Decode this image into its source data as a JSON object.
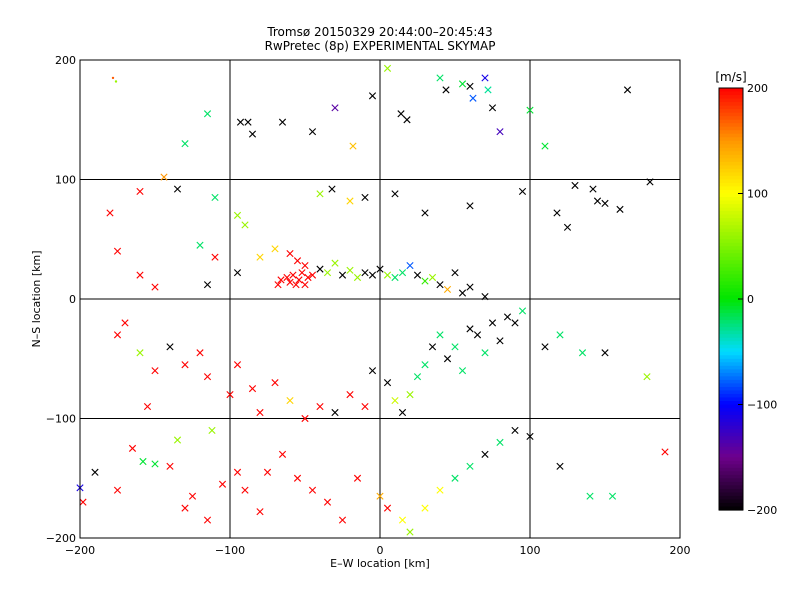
{
  "chart_data": {
    "type": "scatter",
    "title": "Tromsø 20150329 20:44:00–20:45:43",
    "subtitle": "RwPretec (8p) EXPERIMENTAL SKYMAP",
    "xlabel": "E–W location [km]",
    "ylabel": "N–S location [km]",
    "xlim": [
      -200,
      200
    ],
    "ylim": [
      -200,
      200
    ],
    "xticks": [
      -200,
      -100,
      0,
      100,
      200
    ],
    "yticks": [
      -200,
      -100,
      0,
      100,
      200
    ],
    "grid": true,
    "colorbar": {
      "label": "[m/s]",
      "min": -200,
      "max": 200,
      "ticks": [
        200,
        100,
        0,
        -100,
        -200
      ],
      "colormap": "rainbow (black-purple-blue-cyan-green-yellow-orange-red)"
    },
    "marker_types": [
      "cross",
      "dot"
    ],
    "points": [
      [
        -180,
        72,
        200,
        "x"
      ],
      [
        -178,
        185,
        170,
        "dot"
      ],
      [
        -176,
        182,
        60,
        "dot"
      ],
      [
        -160,
        90,
        200,
        "x"
      ],
      [
        -144,
        102,
        150,
        "x"
      ],
      [
        -130,
        130,
        -20,
        "x"
      ],
      [
        -115,
        155,
        -20,
        "x"
      ],
      [
        -93,
        148,
        -200,
        "x"
      ],
      [
        -88,
        148,
        -200,
        "x"
      ],
      [
        -85,
        138,
        -200,
        "x"
      ],
      [
        -65,
        148,
        -200,
        "x"
      ],
      [
        -45,
        140,
        -200,
        "x"
      ],
      [
        -30,
        160,
        -140,
        "x"
      ],
      [
        -18,
        128,
        130,
        "x"
      ],
      [
        -5,
        170,
        -200,
        "x"
      ],
      [
        5,
        193,
        60,
        "x"
      ],
      [
        14,
        155,
        -200,
        "x"
      ],
      [
        18,
        150,
        -200,
        "x"
      ],
      [
        40,
        185,
        -20,
        "x"
      ],
      [
        44,
        175,
        -200,
        "x"
      ],
      [
        55,
        180,
        -10,
        "x"
      ],
      [
        60,
        178,
        -200,
        "x"
      ],
      [
        62,
        168,
        -80,
        "x"
      ],
      [
        70,
        185,
        -110,
        "x"
      ],
      [
        72,
        175,
        -30,
        "x"
      ],
      [
        75,
        160,
        -200,
        "x"
      ],
      [
        80,
        140,
        -130,
        "x"
      ],
      [
        100,
        158,
        -10,
        "x"
      ],
      [
        110,
        128,
        -10,
        "x"
      ],
      [
        165,
        175,
        -200,
        "x"
      ],
      [
        -135,
        92,
        -200,
        "x"
      ],
      [
        -110,
        85,
        -20,
        "x"
      ],
      [
        -95,
        70,
        60,
        "x"
      ],
      [
        -90,
        62,
        60,
        "x"
      ],
      [
        -40,
        88,
        60,
        "x"
      ],
      [
        -32,
        92,
        -200,
        "x"
      ],
      [
        -20,
        82,
        120,
        "x"
      ],
      [
        -10,
        85,
        -200,
        "x"
      ],
      [
        10,
        88,
        -200,
        "x"
      ],
      [
        30,
        72,
        -200,
        "x"
      ],
      [
        60,
        78,
        -200,
        "x"
      ],
      [
        95,
        90,
        -200,
        "x"
      ],
      [
        130,
        95,
        -200,
        "x"
      ],
      [
        142,
        92,
        -200,
        "x"
      ],
      [
        145,
        82,
        -200,
        "x"
      ],
      [
        150,
        80,
        -200,
        "x"
      ],
      [
        180,
        98,
        -200,
        "x"
      ],
      [
        118,
        72,
        -200,
        "x"
      ],
      [
        125,
        60,
        -200,
        "x"
      ],
      [
        160,
        75,
        -200,
        "x"
      ],
      [
        -175,
        40,
        200,
        "x"
      ],
      [
        -160,
        20,
        200,
        "x"
      ],
      [
        -150,
        10,
        200,
        "x"
      ],
      [
        -120,
        45,
        -20,
        "x"
      ],
      [
        -110,
        35,
        200,
        "x"
      ],
      [
        -115,
        12,
        -200,
        "x"
      ],
      [
        -95,
        22,
        -200,
        "x"
      ],
      [
        -80,
        35,
        120,
        "x"
      ],
      [
        -70,
        42,
        120,
        "x"
      ],
      [
        -60,
        38,
        200,
        "x"
      ],
      [
        -55,
        32,
        200,
        "x"
      ],
      [
        -50,
        28,
        200,
        "x"
      ],
      [
        -45,
        20,
        200,
        "x"
      ],
      [
        -40,
        25,
        -200,
        "x"
      ],
      [
        -35,
        22,
        60,
        "x"
      ],
      [
        -30,
        30,
        60,
        "x"
      ],
      [
        -25,
        20,
        -200,
        "x"
      ],
      [
        -20,
        24,
        60,
        "x"
      ],
      [
        -15,
        18,
        60,
        "x"
      ],
      [
        -10,
        22,
        -200,
        "x"
      ],
      [
        -5,
        20,
        -200,
        "x"
      ],
      [
        0,
        25,
        -200,
        "x"
      ],
      [
        5,
        20,
        60,
        "x"
      ],
      [
        10,
        18,
        -20,
        "x"
      ],
      [
        15,
        22,
        -20,
        "x"
      ],
      [
        20,
        28,
        -80,
        "x"
      ],
      [
        25,
        20,
        -200,
        "x"
      ],
      [
        30,
        15,
        20,
        "x"
      ],
      [
        35,
        18,
        60,
        "x"
      ],
      [
        40,
        12,
        -200,
        "x"
      ],
      [
        45,
        8,
        140,
        "x"
      ],
      [
        50,
        22,
        -200,
        "x"
      ],
      [
        55,
        5,
        -200,
        "x"
      ],
      [
        60,
        10,
        -200,
        "x"
      ],
      [
        70,
        2,
        -200,
        "x"
      ],
      [
        -62,
        18,
        200,
        "x"
      ],
      [
        -60,
        14,
        200,
        "x"
      ],
      [
        -58,
        20,
        200,
        "x"
      ],
      [
        -56,
        12,
        200,
        "x"
      ],
      [
        -54,
        16,
        200,
        "x"
      ],
      [
        -52,
        22,
        200,
        "x"
      ],
      [
        -50,
        12,
        200,
        "x"
      ],
      [
        -48,
        18,
        200,
        "x"
      ],
      [
        -66,
        16,
        200,
        "x"
      ],
      [
        -68,
        12,
        200,
        "x"
      ],
      [
        -175,
        -30,
        200,
        "x"
      ],
      [
        -170,
        -20,
        200,
        "x"
      ],
      [
        -160,
        -45,
        60,
        "x"
      ],
      [
        -150,
        -60,
        200,
        "x"
      ],
      [
        -140,
        -40,
        -200,
        "x"
      ],
      [
        -130,
        -55,
        200,
        "x"
      ],
      [
        -120,
        -45,
        200,
        "x"
      ],
      [
        -115,
        -65,
        200,
        "x"
      ],
      [
        -100,
        -80,
        200,
        "x"
      ],
      [
        -95,
        -55,
        200,
        "x"
      ],
      [
        -85,
        -75,
        200,
        "x"
      ],
      [
        -80,
        -95,
        200,
        "x"
      ],
      [
        -70,
        -70,
        200,
        "x"
      ],
      [
        -60,
        -85,
        120,
        "x"
      ],
      [
        -50,
        -100,
        200,
        "x"
      ],
      [
        -40,
        -90,
        200,
        "x"
      ],
      [
        -30,
        -95,
        -200,
        "x"
      ],
      [
        -20,
        -80,
        200,
        "x"
      ],
      [
        -10,
        -90,
        200,
        "x"
      ],
      [
        -5,
        -60,
        -200,
        "x"
      ],
      [
        5,
        -70,
        -200,
        "x"
      ],
      [
        10,
        -85,
        80,
        "x"
      ],
      [
        15,
        -95,
        -200,
        "x"
      ],
      [
        20,
        -80,
        60,
        "x"
      ],
      [
        25,
        -65,
        -20,
        "x"
      ],
      [
        30,
        -55,
        -20,
        "x"
      ],
      [
        35,
        -40,
        -200,
        "x"
      ],
      [
        40,
        -30,
        -20,
        "x"
      ],
      [
        45,
        -50,
        -200,
        "x"
      ],
      [
        50,
        -40,
        -20,
        "x"
      ],
      [
        55,
        -60,
        -20,
        "x"
      ],
      [
        60,
        -25,
        -200,
        "x"
      ],
      [
        65,
        -30,
        -200,
        "x"
      ],
      [
        70,
        -45,
        -20,
        "x"
      ],
      [
        75,
        -20,
        -200,
        "x"
      ],
      [
        80,
        -35,
        -200,
        "x"
      ],
      [
        85,
        -15,
        -200,
        "x"
      ],
      [
        90,
        -20,
        -200,
        "x"
      ],
      [
        95,
        -10,
        -20,
        "x"
      ],
      [
        110,
        -40,
        -200,
        "x"
      ],
      [
        120,
        -30,
        -20,
        "x"
      ],
      [
        135,
        -45,
        -20,
        "x"
      ],
      [
        150,
        -45,
        -200,
        "x"
      ],
      [
        178,
        -65,
        60,
        "x"
      ],
      [
        190,
        -128,
        200,
        "x"
      ],
      [
        -200,
        -158,
        -110,
        "x"
      ],
      [
        -198,
        -170,
        200,
        "x"
      ],
      [
        -190,
        -145,
        -200,
        "x"
      ],
      [
        -175,
        -160,
        200,
        "x"
      ],
      [
        -165,
        -125,
        200,
        "x"
      ],
      [
        -158,
        -136,
        -10,
        "x"
      ],
      [
        -150,
        -138,
        -10,
        "x"
      ],
      [
        -140,
        -140,
        200,
        "x"
      ],
      [
        -130,
        -175,
        200,
        "x"
      ],
      [
        -125,
        -165,
        200,
        "x"
      ],
      [
        -115,
        -185,
        200,
        "x"
      ],
      [
        -105,
        -155,
        200,
        "x"
      ],
      [
        -95,
        -145,
        200,
        "x"
      ],
      [
        -90,
        -160,
        200,
        "x"
      ],
      [
        -80,
        -178,
        200,
        "x"
      ],
      [
        -75,
        -145,
        200,
        "x"
      ],
      [
        -65,
        -130,
        200,
        "x"
      ],
      [
        -55,
        -150,
        200,
        "x"
      ],
      [
        -45,
        -160,
        200,
        "x"
      ],
      [
        -35,
        -170,
        200,
        "x"
      ],
      [
        -25,
        -185,
        200,
        "x"
      ],
      [
        -15,
        -150,
        200,
        "x"
      ],
      [
        0,
        -165,
        140,
        "x"
      ],
      [
        5,
        -175,
        200,
        "x"
      ],
      [
        15,
        -185,
        100,
        "x"
      ],
      [
        20,
        -195,
        60,
        "x"
      ],
      [
        30,
        -175,
        100,
        "x"
      ],
      [
        40,
        -160,
        100,
        "x"
      ],
      [
        50,
        -150,
        -20,
        "x"
      ],
      [
        60,
        -140,
        -20,
        "x"
      ],
      [
        70,
        -130,
        -200,
        "x"
      ],
      [
        80,
        -120,
        -20,
        "x"
      ],
      [
        90,
        -110,
        -200,
        "x"
      ],
      [
        100,
        -115,
        -200,
        "x"
      ],
      [
        120,
        -140,
        -200,
        "x"
      ],
      [
        140,
        -165,
        -20,
        "x"
      ],
      [
        155,
        -165,
        -20,
        "x"
      ],
      [
        -155,
        -90,
        200,
        "x"
      ],
      [
        -135,
        -118,
        60,
        "x"
      ],
      [
        -112,
        -110,
        60,
        "x"
      ]
    ]
  }
}
